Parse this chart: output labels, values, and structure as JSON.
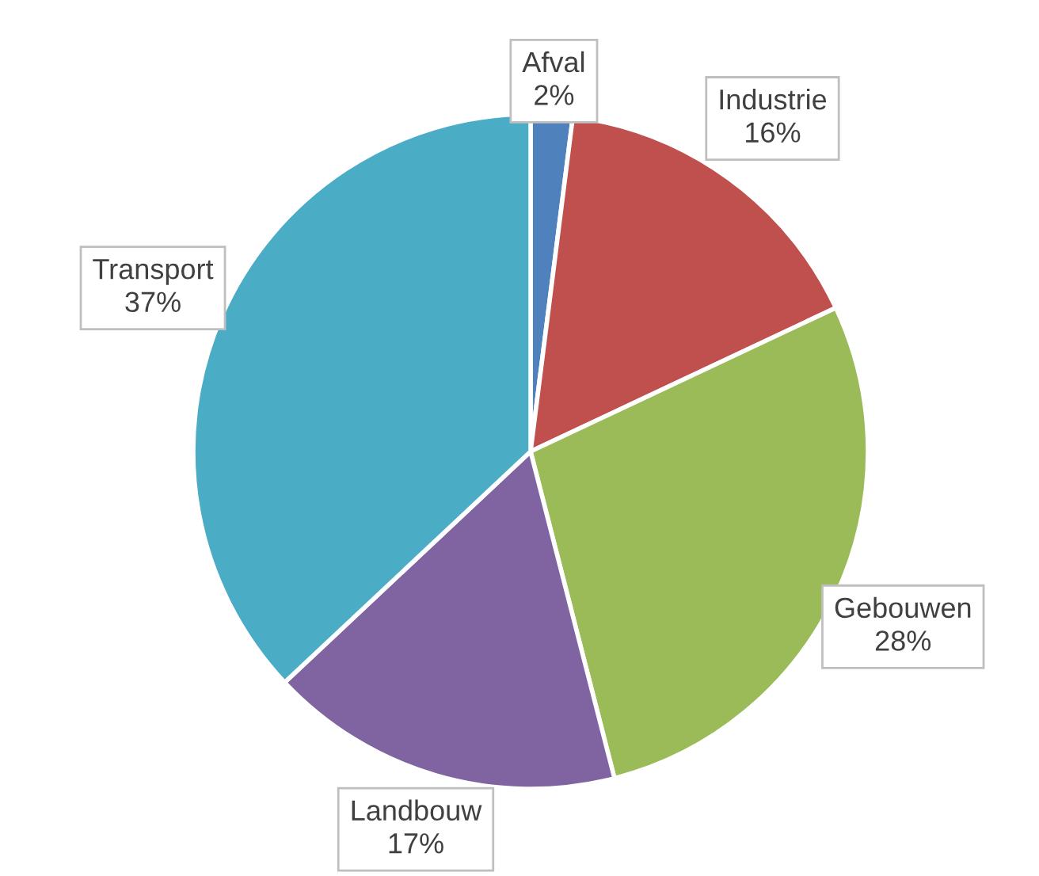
{
  "chart_data": {
    "type": "pie",
    "categories": [
      "Afval",
      "Industrie",
      "Gebouwen",
      "Landbouw",
      "Transport"
    ],
    "values": [
      2,
      16,
      28,
      17,
      37
    ],
    "value_labels": [
      "2%",
      "16%",
      "28%",
      "17%",
      "37%"
    ],
    "colors": [
      "#4f81bd",
      "#c0504d",
      "#9bbb59",
      "#8064a2",
      "#4bacc6"
    ],
    "legend": false
  }
}
